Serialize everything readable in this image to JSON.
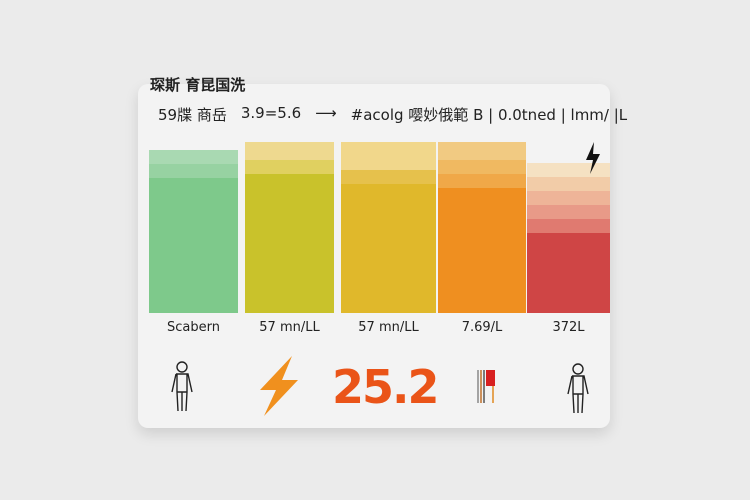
{
  "title": "琛斯 育昆国洗",
  "subtitle": {
    "left": "59牒 商岳",
    "range": "3.9=5.6",
    "arrow": "⟶",
    "right": "#acolg 嘤妙俄範 B | 0.0tned | lmm/ |L"
  },
  "bars": [
    {
      "label": "Scabern",
      "stripes": [
        "#a9d9b2",
        "#97d2a2",
        "#7ec98b",
        "#7ec98b",
        "#7ec98b"
      ]
    },
    {
      "label": "57 mn/LL",
      "stripes": [
        "#eed98f",
        "#e0d060",
        "#c9c22b",
        "#c9c22b",
        "#c9c22b"
      ]
    },
    {
      "label": "57 mn/LL",
      "stripes": [
        "#f1d78b",
        "#e6c14c",
        "#e0b82b",
        "#e0b82b",
        "#e0b82b"
      ]
    },
    {
      "label": "7.69/L",
      "stripes": [
        "#f1ca82",
        "#f0b961",
        "#f0a848",
        "#ef8f20",
        "#ef8f20"
      ]
    },
    {
      "label": "372L",
      "stripes": [
        "#f5e1c2",
        "#f2cca8",
        "#eeb498",
        "#e89a88",
        "#e07a70",
        "#cf4545",
        "#cf4545",
        "#cf4545"
      ]
    }
  ],
  "value": "25.2",
  "icons": [
    "person-icon",
    "lightning-icon",
    "test-tubes-icon",
    "person-icon",
    "lightning-small-icon"
  ],
  "colors": {
    "accent": "#ea5418",
    "bolt": "#f0901e"
  }
}
